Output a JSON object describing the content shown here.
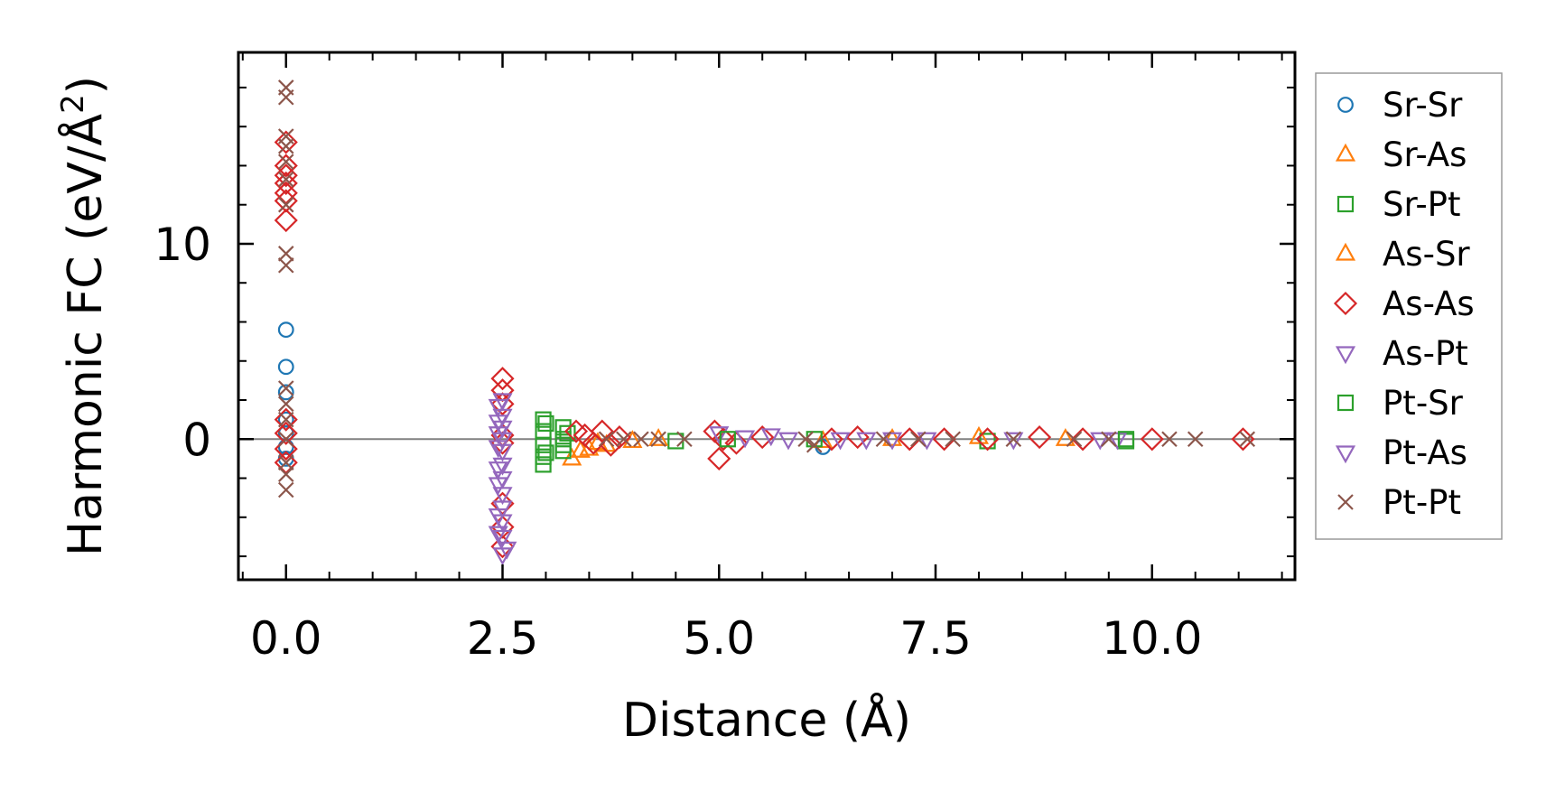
{
  "chart_data": {
    "type": "scatter",
    "title": "",
    "xlabel": "Distance (Å)",
    "ylabel_main": "Harmonic FC (eV/Å",
    "ylabel_sup": "2",
    "ylabel_end": ")",
    "xlim": [
      -0.55,
      11.65
    ],
    "ylim": [
      -7.2,
      19.8
    ],
    "xticks": [
      0.0,
      2.5,
      5.0,
      7.5,
      10.0
    ],
    "xtick_labels": [
      "0.0",
      "2.5",
      "5.0",
      "7.5",
      "10.0"
    ],
    "yticks": [
      0,
      10
    ],
    "ytick_labels": [
      "0",
      "10"
    ],
    "x_minor_step": 0.5,
    "y_minor_step": 2,
    "zero_line": 0,
    "legend_position": "outside-right",
    "series": [
      {
        "name": "Sr-Sr",
        "marker": "circle",
        "color": "#1f77b4",
        "points": [
          [
            0,
            5.6
          ],
          [
            0,
            3.7
          ],
          [
            0,
            2.4
          ],
          [
            0,
            1.0
          ],
          [
            0,
            0.3
          ],
          [
            0,
            -0.4
          ],
          [
            0,
            -1.0
          ],
          [
            6.2,
            -0.4
          ]
        ]
      },
      {
        "name": "Sr-As",
        "marker": "triangle-up",
        "color": "#ff7f0e",
        "points": [
          [
            3.3,
            -1.0
          ],
          [
            3.5,
            -0.5
          ],
          [
            3.7,
            -0.3
          ],
          [
            4.0,
            -0.1
          ],
          [
            6.2,
            -0.1
          ],
          [
            8.0,
            0.1
          ],
          [
            9.0,
            0.0
          ]
        ]
      },
      {
        "name": "Sr-Pt",
        "marker": "square",
        "color": "#2ca02c",
        "points": [
          [
            2.97,
            1.0
          ],
          [
            2.97,
            0.4
          ],
          [
            2.97,
            -0.3
          ],
          [
            2.97,
            -0.9
          ],
          [
            2.97,
            -1.3
          ],
          [
            3.2,
            0.6
          ],
          [
            3.2,
            0.0
          ],
          [
            3.2,
            -0.6
          ],
          [
            3.25,
            0.3
          ],
          [
            4.5,
            -0.1
          ],
          [
            8.1,
            -0.1
          ],
          [
            9.7,
            -0.1
          ]
        ]
      },
      {
        "name": "As-Sr",
        "marker": "triangle-up",
        "color": "#ff7f0e",
        "points": [
          [
            3.4,
            -0.6
          ],
          [
            3.6,
            -0.2
          ],
          [
            4.3,
            0.0
          ],
          [
            7.0,
            0.0
          ]
        ]
      },
      {
        "name": "As-As",
        "marker": "diamond",
        "color": "#d62728",
        "points": [
          [
            0,
            15.2
          ],
          [
            0,
            14.0
          ],
          [
            0,
            13.5
          ],
          [
            0,
            13.1
          ],
          [
            0,
            12.6
          ],
          [
            0,
            12.2
          ],
          [
            0,
            11.2
          ],
          [
            0,
            1.0
          ],
          [
            0,
            0.3
          ],
          [
            0,
            -0.5
          ],
          [
            0,
            -1.2
          ],
          [
            2.5,
            3.1
          ],
          [
            2.5,
            2.5
          ],
          [
            2.5,
            1.8
          ],
          [
            2.5,
            0.2
          ],
          [
            2.5,
            -0.2
          ],
          [
            2.5,
            -3.3
          ],
          [
            2.5,
            -4.5
          ],
          [
            2.5,
            -5.5
          ],
          [
            3.35,
            0.4
          ],
          [
            3.45,
            0.2
          ],
          [
            3.55,
            -0.2
          ],
          [
            3.65,
            0.4
          ],
          [
            3.75,
            -0.3
          ],
          [
            3.85,
            0.1
          ],
          [
            4.95,
            0.4
          ],
          [
            5.0,
            -1.0
          ],
          [
            5.05,
            0.0
          ],
          [
            5.2,
            -0.2
          ],
          [
            5.5,
            0.1
          ],
          [
            6.3,
            0.0
          ],
          [
            6.6,
            0.1
          ],
          [
            7.2,
            0.0
          ],
          [
            7.6,
            0.0
          ],
          [
            8.1,
            0.0
          ],
          [
            8.7,
            0.1
          ],
          [
            9.2,
            0.0
          ],
          [
            10.0,
            0.0
          ],
          [
            11.05,
            0.0
          ]
        ]
      },
      {
        "name": "As-Pt",
        "marker": "triangle-down",
        "color": "#9467bd",
        "points": [
          [
            2.5,
            2.0
          ],
          [
            2.5,
            1.2
          ],
          [
            2.5,
            0.6
          ],
          [
            2.5,
            0.0
          ],
          [
            2.5,
            -0.6
          ],
          [
            2.5,
            -1.3
          ],
          [
            2.5,
            -2.0
          ],
          [
            2.5,
            -2.8
          ],
          [
            2.5,
            -3.5
          ],
          [
            2.5,
            -4.2
          ],
          [
            2.5,
            -5.0
          ],
          [
            2.5,
            -5.9
          ],
          [
            5.0,
            0.3
          ],
          [
            5.6,
            0.2
          ],
          [
            6.4,
            0.0
          ],
          [
            7.0,
            0.0
          ],
          [
            8.4,
            0.0
          ],
          [
            9.6,
            0.0
          ]
        ]
      },
      {
        "name": "Pt-Sr",
        "marker": "square",
        "color": "#2ca02c",
        "points": [
          [
            3.0,
            0.8
          ],
          [
            3.0,
            -0.7
          ],
          [
            3.2,
            -0.3
          ],
          [
            5.1,
            0.0
          ],
          [
            6.1,
            0.0
          ],
          [
            9.7,
            0.0
          ]
        ]
      },
      {
        "name": "Pt-As",
        "marker": "triangle-down",
        "color": "#9467bd",
        "points": [
          [
            2.45,
            1.7
          ],
          [
            2.45,
            0.9
          ],
          [
            2.45,
            0.3
          ],
          [
            2.45,
            -0.4
          ],
          [
            2.45,
            -1.5
          ],
          [
            2.45,
            -2.3
          ],
          [
            2.45,
            -3.9
          ],
          [
            2.45,
            -4.8
          ],
          [
            2.55,
            -5.6
          ],
          [
            5.3,
            0.1
          ],
          [
            5.8,
            0.0
          ],
          [
            6.7,
            0.0
          ],
          [
            7.4,
            0.0
          ],
          [
            9.4,
            0.0
          ]
        ]
      },
      {
        "name": "Pt-Pt",
        "marker": "x",
        "color": "#8c564b",
        "points": [
          [
            0,
            18.0
          ],
          [
            0,
            17.5
          ],
          [
            0,
            15.5
          ],
          [
            0,
            15.0
          ],
          [
            0,
            14.2
          ],
          [
            0,
            13.3
          ],
          [
            0,
            12.0
          ],
          [
            0,
            9.5
          ],
          [
            0,
            8.9
          ],
          [
            0,
            2.6
          ],
          [
            0,
            1.8
          ],
          [
            0,
            1.0
          ],
          [
            0,
            0.0
          ],
          [
            0,
            -1.2
          ],
          [
            0,
            -1.8
          ],
          [
            0,
            -2.6
          ],
          [
            3.7,
            0.0
          ],
          [
            3.9,
            0.0
          ],
          [
            4.1,
            0.0
          ],
          [
            4.3,
            0.0
          ],
          [
            4.6,
            0.0
          ],
          [
            6.0,
            0.0
          ],
          [
            6.1,
            -0.3
          ],
          [
            6.9,
            0.0
          ],
          [
            7.3,
            0.0
          ],
          [
            7.7,
            0.0
          ],
          [
            8.4,
            0.0
          ],
          [
            9.1,
            0.0
          ],
          [
            9.5,
            0.0
          ],
          [
            10.2,
            0.0
          ],
          [
            10.5,
            0.0
          ],
          [
            11.1,
            0.0
          ]
        ]
      }
    ]
  }
}
